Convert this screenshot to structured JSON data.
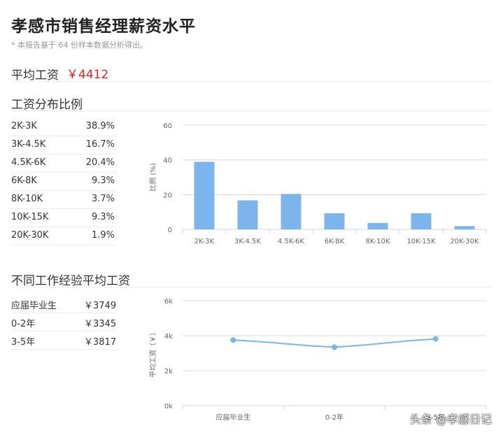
{
  "title": "孝感市销售经理薪资水平",
  "note": "* 本报告基于 64 份样本数据分析得出。",
  "avg": {
    "label": "平均工资",
    "value": "￥4412"
  },
  "dist_title": "工资分布比例",
  "dist_rows": [
    {
      "range": "2K-3K",
      "pct": "38.9%"
    },
    {
      "range": "3K-4.5K",
      "pct": "16.7%"
    },
    {
      "range": "4.5K-6K",
      "pct": "20.4%"
    },
    {
      "range": "6K-8K",
      "pct": "9.3%"
    },
    {
      "range": "8K-10K",
      "pct": "3.7%"
    },
    {
      "range": "10K-15K",
      "pct": "9.3%"
    },
    {
      "range": "20K-30K",
      "pct": "1.9%"
    }
  ],
  "exp_title": "不同工作经验平均工资",
  "exp_rows": [
    {
      "exp": "应届毕业生",
      "salary": "￥3749"
    },
    {
      "exp": "0-2年",
      "salary": "￥3345"
    },
    {
      "exp": "3-5年",
      "salary": "￥3817"
    }
  ],
  "watermark": "头条 @孝感日记",
  "colors": {
    "bar": "#7cb5ec",
    "line": "#7cb5ec",
    "accent": "#d9261c",
    "grid": "#c0c0c0"
  },
  "chart_data": [
    {
      "type": "bar",
      "categories": [
        "2K-3K",
        "3K-4.5K",
        "4.5K-6K",
        "6K-8K",
        "8K-10K",
        "10K-15K",
        "20K-30K"
      ],
      "values": [
        38.9,
        16.7,
        20.4,
        9.3,
        3.7,
        9.3,
        1.9
      ],
      "ylabel": "比例 (%)",
      "ylim": [
        0,
        60
      ],
      "yticks": [
        0,
        20,
        40,
        60
      ],
      "grid": true
    },
    {
      "type": "line",
      "categories": [
        "应届毕业生",
        "0-2年",
        "3-5年"
      ],
      "values": [
        3749,
        3345,
        3817
      ],
      "ylabel": "平均工资（￥）",
      "ylim": [
        0,
        6000
      ],
      "yticks": [
        "0k",
        "2k",
        "4k",
        "6k"
      ],
      "grid": true
    }
  ]
}
